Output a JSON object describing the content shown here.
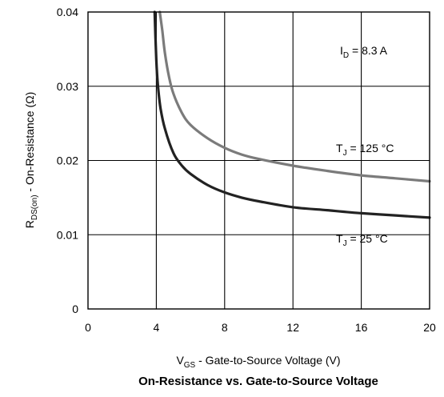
{
  "chart_data": {
    "type": "line",
    "title": "On-Resistance vs. Gate-to-Source Voltage",
    "xlabel": {
      "main": "V",
      "sub": "GS",
      "rest": " - Gate-to-Source Voltage (V)"
    },
    "ylabel": {
      "main": "R",
      "sub": "DS(on)",
      "rest": " - On-Resistance (Ω)"
    },
    "xlim": [
      0,
      20
    ],
    "ylim": [
      0,
      0.04
    ],
    "xticks": [
      0,
      4,
      8,
      12,
      16,
      20
    ],
    "xtick_labels": [
      "0",
      "4",
      "8",
      "12",
      "16",
      "20"
    ],
    "yticks": [
      0,
      0.01,
      0.02,
      0.03,
      0.04
    ],
    "ytick_labels": [
      "0",
      "0.01",
      "0.02",
      "0.03",
      "0.04"
    ],
    "grid": true,
    "annotations": [
      {
        "main": "I",
        "sub": "D",
        "rest": " = 8.3 A"
      }
    ],
    "series": [
      {
        "name": "T_J = 125 °C",
        "label": {
          "main": "T",
          "sub": "J",
          "rest": " = 125 °C"
        },
        "color": "#7b7b7b",
        "x": [
          4.2,
          4.35,
          4.5,
          4.75,
          5.0,
          5.5,
          6.0,
          7.0,
          8.0,
          9.0,
          10.0,
          12.0,
          14.0,
          16.0,
          18.0,
          20.0
        ],
        "y": [
          0.04,
          0.0375,
          0.0345,
          0.0312,
          0.029,
          0.0264,
          0.0248,
          0.023,
          0.0217,
          0.0208,
          0.0202,
          0.0193,
          0.0186,
          0.018,
          0.0176,
          0.0172
        ]
      },
      {
        "name": "T_J = 25 °C",
        "label": {
          "main": "T",
          "sub": "J",
          "rest": " = 25 °C"
        },
        "color": "#222222",
        "x": [
          3.9,
          4.0,
          4.1,
          4.25,
          4.5,
          5.0,
          5.5,
          6.0,
          7.0,
          8.0,
          9.0,
          10.0,
          12.0,
          14.0,
          16.0,
          18.0,
          20.0
        ],
        "y": [
          0.04,
          0.0335,
          0.03,
          0.027,
          0.0243,
          0.021,
          0.0193,
          0.0182,
          0.0167,
          0.0157,
          0.015,
          0.0145,
          0.0137,
          0.0133,
          0.0129,
          0.0126,
          0.0123
        ]
      }
    ]
  }
}
